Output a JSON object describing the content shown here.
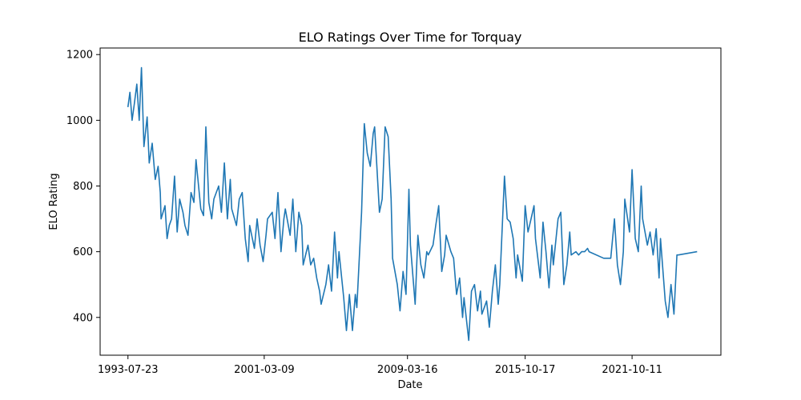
{
  "chart_data": {
    "type": "line",
    "title": "ELO Ratings Over Time for Torquay",
    "xlabel": "Date",
    "ylabel": "ELO Rating",
    "xlim": [
      "1992-01-01",
      "2026-10-01"
    ],
    "ylim": [
      285,
      1220
    ],
    "x_ticks": [
      "1993-07-23",
      "2001-03-09",
      "2009-03-16",
      "2015-10-17",
      "2021-10-11"
    ],
    "y_ticks": [
      400,
      600,
      800,
      1000,
      1200
    ],
    "grid": false,
    "color": "#1f77b4",
    "series": [
      {
        "x": [
          "1993-07-23",
          "1993-09-01",
          "1993-10-15",
          "1993-12-01",
          "1994-01-20",
          "1994-03-10",
          "1994-04-25",
          "1994-06-15",
          "1994-08-20",
          "1994-10-01",
          "1994-12-01",
          "1995-02-01",
          "1995-04-01",
          "1995-05-15",
          "1995-06-01",
          "1995-08-20",
          "1995-10-01",
          "1995-11-15",
          "1996-01-01",
          "1996-03-01",
          "1996-04-25",
          "1996-06-15",
          "1996-08-20",
          "1996-10-01",
          "1996-12-01",
          "1997-02-01",
          "1997-04-01",
          "1997-05-15",
          "1997-08-20",
          "1997-10-15",
          "1997-12-01",
          "1998-02-01",
          "1998-04-01",
          "1998-05-15",
          "1998-08-20",
          "1998-10-15",
          "1998-12-15",
          "1999-02-15",
          "1999-04-15",
          "1999-05-15",
          "1999-08-20",
          "1999-10-15",
          "1999-12-15",
          "2000-02-15",
          "2000-04-15",
          "2000-05-15",
          "2000-08-20",
          "2000-10-15",
          "2000-12-15",
          "2001-02-15",
          "2001-04-15",
          "2001-05-15",
          "2001-08-20",
          "2001-10-15",
          "2001-12-15",
          "2002-02-15",
          "2002-04-15",
          "2002-05-15",
          "2002-08-20",
          "2002-10-15",
          "2002-12-15",
          "2003-02-15",
          "2003-04-15",
          "2003-05-15",
          "2003-08-20",
          "2003-10-15",
          "2003-12-15",
          "2004-02-15",
          "2004-04-15",
          "2004-05-15",
          "2004-08-20",
          "2004-10-15",
          "2004-12-15",
          "2005-02-15",
          "2005-04-15",
          "2005-05-15",
          "2005-08-20",
          "2005-10-15",
          "2005-12-15",
          "2006-02-15",
          "2006-04-15",
          "2006-05-15",
          "2006-08-20",
          "2006-10-15",
          "2006-12-15",
          "2007-02-15",
          "2007-04-15",
          "2007-05-15",
          "2007-08-20",
          "2007-10-15",
          "2007-12-15",
          "2008-02-15",
          "2008-04-15",
          "2008-05-15",
          "2008-08-20",
          "2008-10-15",
          "2008-12-15",
          "2009-02-15",
          "2009-04-15",
          "2009-05-15",
          "2009-08-20",
          "2009-10-15",
          "2009-12-15",
          "2010-02-15",
          "2010-04-15",
          "2010-05-15",
          "2010-08-20",
          "2010-10-15",
          "2010-12-15",
          "2011-02-15",
          "2011-04-15",
          "2011-05-15",
          "2011-08-20",
          "2011-10-15",
          "2011-12-15",
          "2012-02-15",
          "2012-04-15",
          "2012-05-15",
          "2012-08-20",
          "2012-10-15",
          "2012-12-15",
          "2013-02-15",
          "2013-04-15",
          "2013-05-15",
          "2013-08-20",
          "2013-10-15",
          "2013-12-15",
          "2014-02-15",
          "2014-04-15",
          "2014-05-15",
          "2014-08-20",
          "2014-10-15",
          "2014-12-15",
          "2015-02-15",
          "2015-04-15",
          "2015-05-15",
          "2015-08-20",
          "2015-10-17",
          "2015-12-15",
          "2016-02-15",
          "2016-04-15",
          "2016-05-15",
          "2016-08-20",
          "2016-10-15",
          "2016-12-15",
          "2017-02-15",
          "2017-04-15",
          "2017-05-15",
          "2017-08-20",
          "2017-10-15",
          "2017-12-15",
          "2018-02-15",
          "2018-04-15",
          "2018-05-15",
          "2018-08-20",
          "2018-10-15",
          "2018-12-15",
          "2019-02-15",
          "2019-04-15",
          "2019-05-15",
          "2020-03-10",
          "2020-08-01",
          "2020-10-15",
          "2020-12-15",
          "2021-02-15",
          "2021-04-15",
          "2021-05-15",
          "2021-08-20",
          "2021-10-11",
          "2021-12-15",
          "2022-02-15",
          "2022-04-15",
          "2022-05-15",
          "2022-08-20",
          "2022-10-15",
          "2022-12-15",
          "2023-02-15",
          "2023-04-15",
          "2023-05-15",
          "2023-08-20",
          "2023-10-15",
          "2023-12-15",
          "2024-02-15",
          "2024-04-15",
          "2024-05-15",
          "2025-06-01"
        ],
        "y": [
          1040,
          1085,
          1000,
          1050,
          1110,
          1000,
          1160,
          920,
          1010,
          870,
          930,
          820,
          860,
          780,
          700,
          740,
          640,
          680,
          700,
          830,
          660,
          760,
          720,
          680,
          650,
          780,
          750,
          880,
          730,
          710,
          980,
          750,
          700,
          760,
          800,
          720,
          870,
          700,
          820,
          730,
          680,
          760,
          780,
          640,
          570,
          680,
          610,
          700,
          620,
          570,
          650,
          700,
          720,
          640,
          780,
          600,
          700,
          730,
          650,
          760,
          600,
          720,
          680,
          560,
          620,
          560,
          580,
          520,
          480,
          440,
          500,
          560,
          480,
          660,
          520,
          600,
          460,
          360,
          470,
          360,
          470,
          430,
          720,
          990,
          900,
          860,
          960,
          980,
          720,
          760,
          980,
          950,
          760,
          580,
          500,
          420,
          540,
          470,
          790,
          620,
          440,
          650,
          560,
          520,
          600,
          590,
          620,
          680,
          740,
          540,
          590,
          650,
          600,
          580,
          470,
          520,
          400,
          460,
          330,
          480,
          500,
          420,
          480,
          410,
          450,
          370,
          480,
          560,
          440,
          500,
          830,
          700,
          690,
          640,
          520,
          590,
          510,
          740,
          660,
          700,
          740,
          640,
          520,
          690,
          600,
          490,
          620,
          560,
          700,
          720,
          500,
          560,
          660,
          590,
          600,
          590,
          600,
          600,
          610,
          600,
          580,
          580,
          700,
          560,
          500,
          600,
          760,
          660,
          850,
          640,
          600,
          800,
          700,
          620,
          660,
          590,
          670,
          520,
          640,
          450,
          400,
          500,
          410,
          590,
          590,
          600
        ]
      }
    ]
  }
}
